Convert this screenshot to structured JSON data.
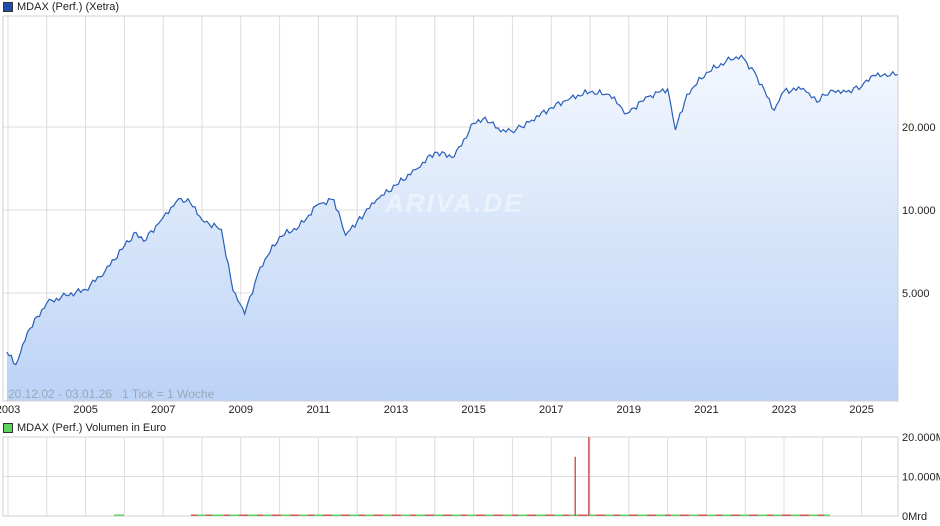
{
  "main_legend": {
    "label": "MDAX (Perf.) (Xetra)",
    "color": "#1e4fa8"
  },
  "volume_legend": {
    "label": "MDAX (Perf.) Volumen in Euro",
    "color": "#5fd35f"
  },
  "range_label": "20.12.02 - 03.01.26   1 Tick = 1 Woche",
  "watermark": "ARIVA.DE",
  "colors": {
    "line": "#2a5fb8",
    "area_top": "#eef4fd",
    "area_bottom": "#bcd3f6",
    "grid": "#d8d8d8",
    "vol_up": "#5fd35f",
    "vol_down": "#d05a5a"
  },
  "chart_data": [
    {
      "type": "area",
      "title": "MDAX (Perf.) (Xetra)",
      "xlabel": "",
      "ylabel": "",
      "y_scale": "log",
      "x_ticks": [
        "2003",
        "2005",
        "2007",
        "2009",
        "2011",
        "2013",
        "2015",
        "2017",
        "2019",
        "2021",
        "2023",
        "2025"
      ],
      "y_ticks": [
        "5.000",
        "10.000",
        "20.000"
      ],
      "date_range": "20.12.02 - 03.01.26",
      "tick_interval": "1 Woche",
      "grid": true,
      "x": [
        2002.97,
        2003.2,
        2003.5,
        2004.0,
        2004.5,
        2005.0,
        2005.5,
        2006.0,
        2006.3,
        2006.5,
        2007.0,
        2007.4,
        2007.7,
        2008.0,
        2008.5,
        2008.8,
        2009.1,
        2009.5,
        2010.0,
        2010.5,
        2011.0,
        2011.4,
        2011.7,
        2012.0,
        2012.5,
        2013.0,
        2013.5,
        2014.0,
        2014.5,
        2015.0,
        2015.3,
        2015.7,
        2016.1,
        2016.5,
        2017.0,
        2017.5,
        2018.0,
        2018.5,
        2018.95,
        2019.5,
        2020.0,
        2020.2,
        2020.5,
        2021.0,
        2021.5,
        2021.9,
        2022.3,
        2022.75,
        2023.0,
        2023.5,
        2023.85,
        2024.2,
        2024.6,
        2025.0,
        2025.3,
        2025.6,
        2026.0
      ],
      "values": [
        3050,
        2750,
        3600,
        4600,
        4900,
        5150,
        6000,
        7400,
        8300,
        7700,
        9400,
        11000,
        10600,
        9200,
        8500,
        5100,
        4200,
        6200,
        8000,
        8700,
        10500,
        10900,
        8100,
        9100,
        10900,
        12300,
        14000,
        16200,
        15600,
        20600,
        21700,
        19200,
        19600,
        21200,
        23500,
        25500,
        26800,
        26200,
        22400,
        25800,
        27500,
        19500,
        26300,
        31500,
        34500,
        36400,
        30500,
        23000,
        27000,
        27600,
        24600,
        27200,
        26800,
        28000,
        30800,
        31200,
        31000
      ]
    },
    {
      "type": "bar",
      "title": "MDAX (Perf.) Volumen in Euro",
      "y_ticks": [
        "0Mrd",
        "10.000M",
        "20.000M"
      ],
      "ylim": [
        0,
        20000
      ],
      "unit": "M EUR",
      "notable_spikes": [
        {
          "x": 2017.6,
          "value": 15000,
          "color": "red"
        },
        {
          "x": 2017.95,
          "value": 20000,
          "color": "red"
        }
      ],
      "baseline_note": "weekly volume near 0 from ~2008 to ~2024 (mixed red/green)"
    }
  ]
}
